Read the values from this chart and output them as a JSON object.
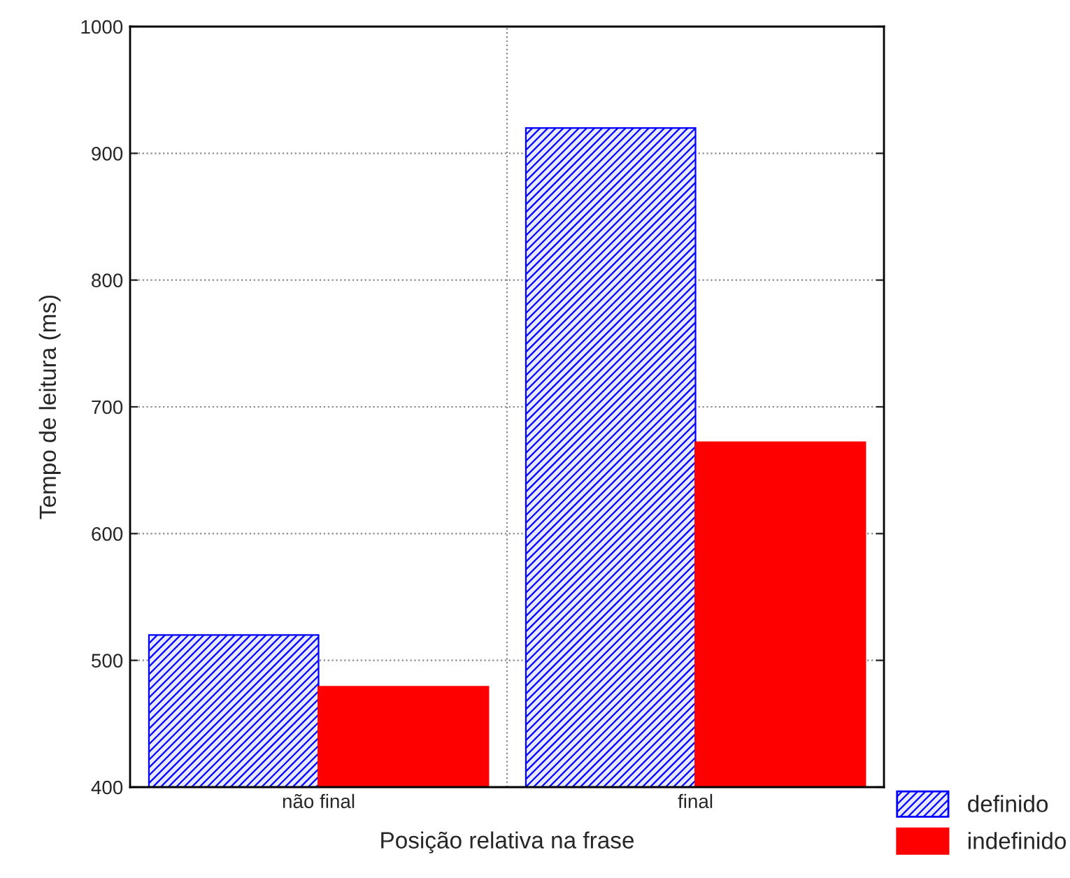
{
  "chart_data": {
    "type": "bar",
    "xlabel": "Posição relativa na frase",
    "ylabel": "Tempo de leitura (ms)",
    "categories": [
      "não final",
      "final"
    ],
    "series": [
      {
        "name": "definido",
        "color": "#0000ff",
        "values": [
          520,
          920
        ]
      },
      {
        "name": "indefinido",
        "color": "#ff0000",
        "values": [
          479,
          672
        ]
      }
    ],
    "ylim": [
      400,
      1000
    ],
    "yticks": [
      400,
      500,
      600,
      700,
      800,
      900,
      1000
    ],
    "grid": true,
    "legend": "bottom right"
  }
}
